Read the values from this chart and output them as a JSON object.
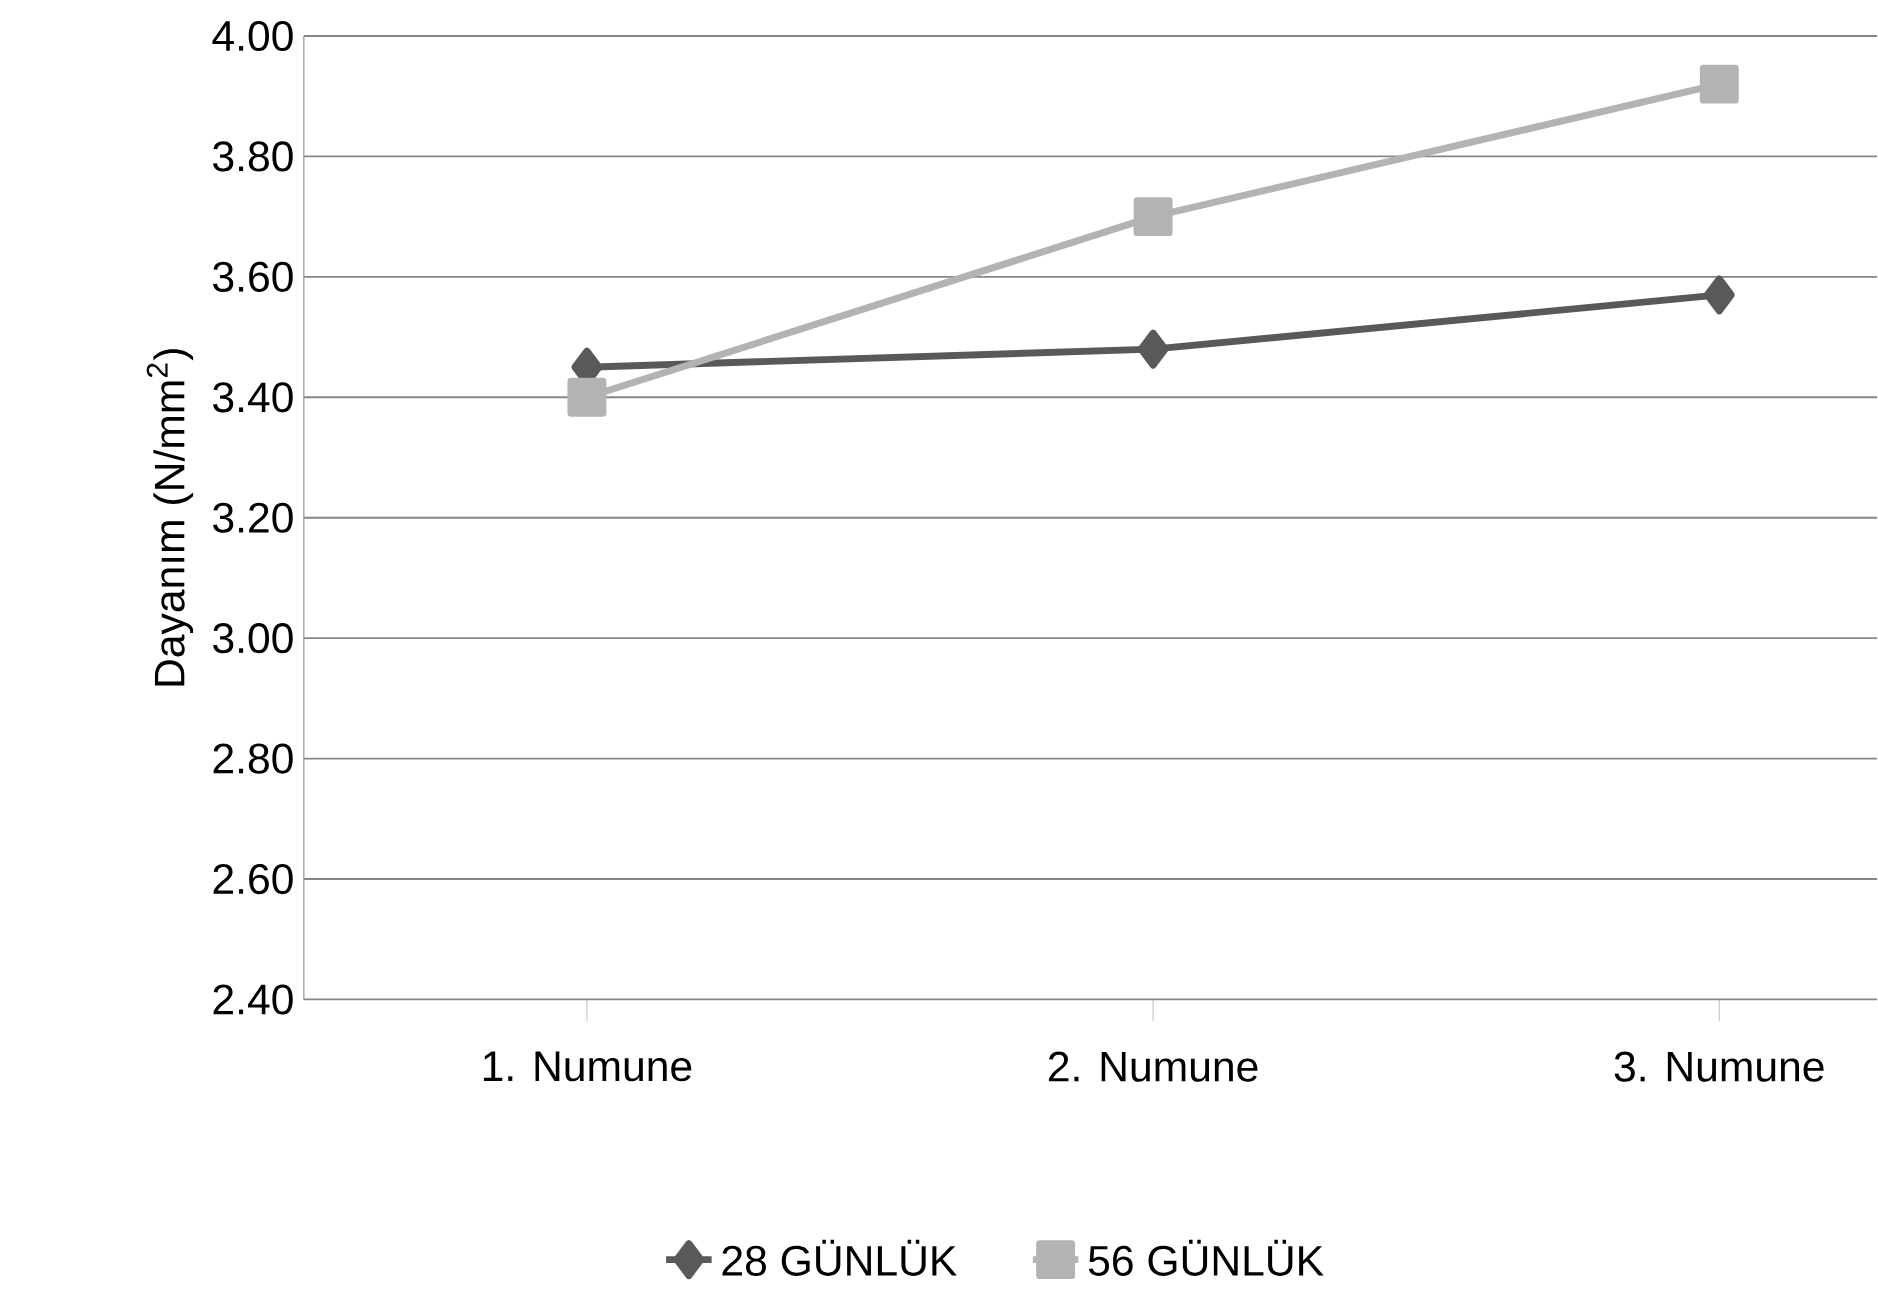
{
  "chart_data": {
    "type": "line",
    "ylabel": "Dayanım (N/mm$^{2}$)",
    "categories": [
      "1. Numune",
      "2. Numune",
      "3. Numune"
    ],
    "series": [
      {
        "name": "28 GÜNLÜK",
        "color": "#595959",
        "marker": "diamond",
        "values": [
          3.45,
          3.48,
          3.57
        ]
      },
      {
        "name": "56 GÜNLÜK",
        "color": "#b3b3b3",
        "marker": "square",
        "values": [
          3.4,
          3.7,
          3.92
        ]
      }
    ],
    "ylim": [
      2.4,
      4.0
    ],
    "yticks": [
      {
        "value": 2.4,
        "label": "2.40"
      },
      {
        "value": 2.6,
        "label": "2.60"
      },
      {
        "value": 2.8,
        "label": "2.80"
      },
      {
        "value": 3.0,
        "label": "3.00"
      },
      {
        "value": 3.2,
        "label": "3.20"
      },
      {
        "value": 3.4,
        "label": "3.40"
      },
      {
        "value": 3.6,
        "label": "3.60"
      },
      {
        "value": 3.8,
        "label": "3.80"
      },
      {
        "value": 4.0,
        "label": "4.00"
      }
    ],
    "grid": "y",
    "legend": "bottom",
    "line_style": "solid"
  }
}
